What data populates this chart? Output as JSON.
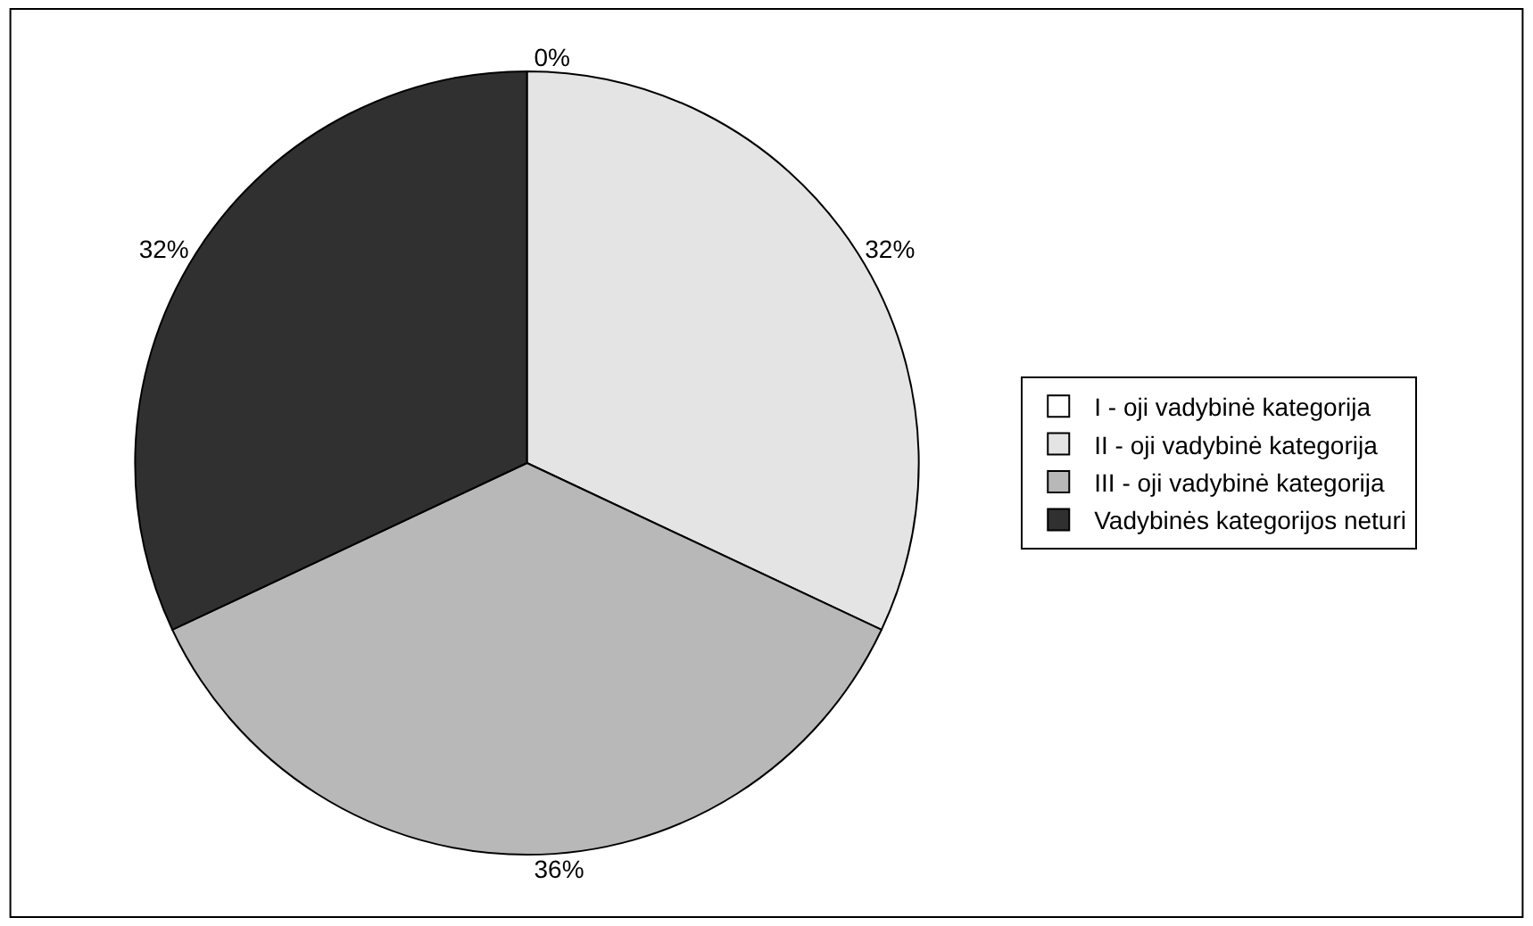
{
  "chart_data": {
    "type": "pie",
    "categories": [
      "I - oji vadybinė kategorija",
      "II - oji vadybinė kategorija",
      "III - oji vadybinė kategorija",
      "Vadybinės kategorijos neturi"
    ],
    "values": [
      0,
      32,
      36,
      32
    ],
    "value_labels": [
      "0%",
      "32%",
      "36%",
      "32%"
    ],
    "colors": [
      "#ffffff",
      "#e4e4e4",
      "#b8b8b8",
      "#303030"
    ],
    "legend": "right"
  }
}
